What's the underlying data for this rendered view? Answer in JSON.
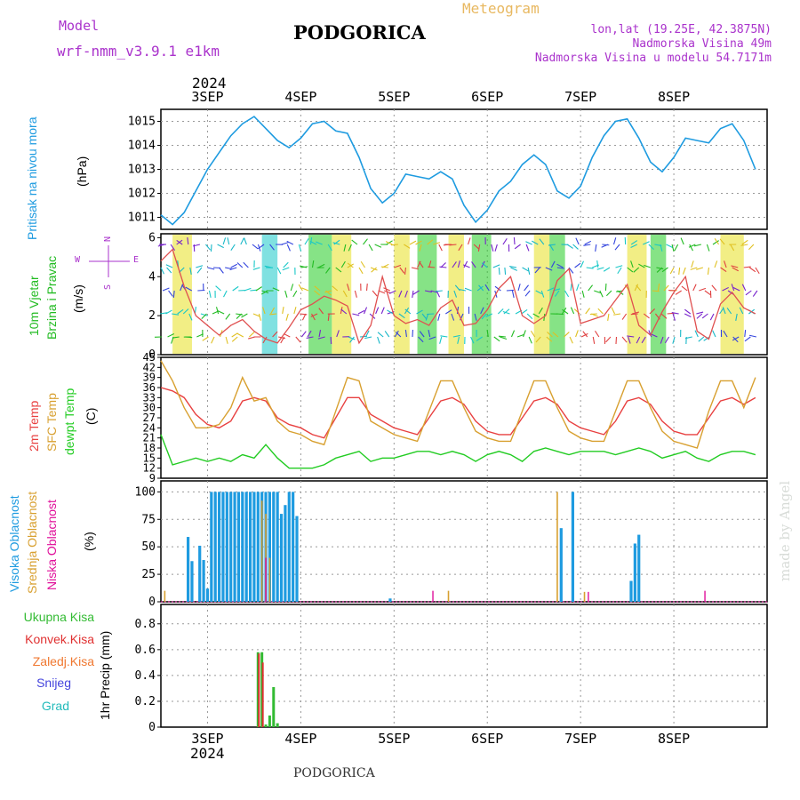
{
  "header": {
    "model_label": "Model",
    "model_name": "wrf-nmm_v3.9.1  e1km",
    "title": "PODGORICA",
    "meteogram_label": "Meteogram",
    "coords": "lon,lat (19.25E, 42.3875N)",
    "altitude": "Nadmorska Visina 49m",
    "model_altitude": "Nadmorska Visina u modelu 54.7171m",
    "footer_title": "PODGORICA",
    "credit": "made by Angel",
    "year_top": "2024",
    "year_bottom": "2024"
  },
  "colors": {
    "pressure": "#1e9be0",
    "wind_label": "#22bb22",
    "temp2m": "#e84040",
    "sfc": "#d8a030",
    "dewpt": "#22cc22",
    "high_cloud": "#1e9be0",
    "mid_cloud": "#d8a030",
    "low_cloud": "#e0109a",
    "rain_total": "#33bb33",
    "rain_conv": "#e03030",
    "rain_frozen": "#f07830",
    "snow": "#4444dd",
    "hail": "#22bbbb",
    "compass": "#aa33cc"
  },
  "days": [
    "3SEP",
    "4SEP",
    "5SEP",
    "6SEP",
    "7SEP",
    "8SEP"
  ],
  "panels": {
    "pressure": {
      "label": "Pritisak na nivou mora",
      "unit": "(hPa)",
      "ticks": [
        "1011",
        "1012",
        "1013",
        "1014",
        "1015"
      ]
    },
    "wind": {
      "label1": "10m Vjetar",
      "label2": "Brzina i Pravac",
      "unit": "(m/s)",
      "ticks": [
        "0",
        "2",
        "4",
        "6"
      ],
      "compass_w": "W",
      "compass_e": "E",
      "compass_n": "N",
      "compass_s": "S"
    },
    "temp": {
      "label1": "2m Temp",
      "label2": "SFC Temp",
      "label3": "dewpt Temp",
      "unit": "(C)",
      "ticks": [
        "9",
        "12",
        "15",
        "18",
        "21",
        "24",
        "27",
        "30",
        "33",
        "36",
        "39",
        "42",
        "45"
      ]
    },
    "cloud": {
      "label1": "Visoka Oblacnost",
      "label2": "Srednja Oblacnost",
      "label3": "Niska Oblacnost",
      "unit": "(%)",
      "ticks": [
        "0",
        "25",
        "50",
        "75",
        "100"
      ]
    },
    "precip": {
      "legend": [
        "Ukupna Kisa",
        "Konvek.Kisa",
        "Zaledj.Kisa",
        "Snijeg",
        "Grad"
      ],
      "unit": "1hr Precip (mm)",
      "ticks": [
        "0",
        "0.2",
        "0.4",
        "0.6",
        "0.8"
      ]
    }
  },
  "chart_data": [
    {
      "type": "line",
      "name": "pressure",
      "x_unit": "hours from 2 SEP 12UTC",
      "ylim": [
        1010.5,
        1015.5
      ],
      "x": [
        0,
        3,
        6,
        9,
        12,
        15,
        18,
        21,
        24,
        27,
        30,
        33,
        36,
        39,
        42,
        45,
        48,
        51,
        54,
        57,
        60,
        63,
        66,
        69,
        72,
        75,
        78,
        81,
        84,
        87,
        90,
        93,
        96,
        99,
        102,
        105,
        108,
        111,
        114,
        117,
        120,
        123,
        126,
        129,
        132,
        135,
        138,
        141,
        144,
        147,
        150,
        153
      ],
      "values": [
        1011.1,
        1010.7,
        1011.2,
        1012.1,
        1013.0,
        1013.7,
        1014.4,
        1014.9,
        1015.2,
        1014.7,
        1014.2,
        1013.9,
        1014.3,
        1014.9,
        1015.0,
        1014.6,
        1014.5,
        1013.5,
        1012.2,
        1011.6,
        1012.0,
        1012.8,
        1012.7,
        1012.6,
        1012.9,
        1012.6,
        1011.5,
        1010.8,
        1011.3,
        1012.1,
        1012.5,
        1013.2,
        1013.6,
        1013.2,
        1012.1,
        1011.8,
        1012.3,
        1013.5,
        1014.4,
        1015.0,
        1015.1,
        1014.3,
        1013.3,
        1012.9,
        1013.5,
        1014.3,
        1014.2,
        1014.1,
        1014.7,
        1014.9,
        1014.2,
        1013.0
      ]
    },
    {
      "type": "line",
      "name": "wind_speed",
      "x_unit": "hours from 2 SEP 12UTC",
      "ylim": [
        0,
        6.2
      ],
      "x": [
        0,
        3,
        6,
        9,
        12,
        15,
        18,
        21,
        24,
        27,
        30,
        33,
        36,
        39,
        42,
        45,
        48,
        51,
        54,
        57,
        60,
        63,
        66,
        69,
        72,
        75,
        78,
        81,
        84,
        87,
        90,
        93,
        96,
        99,
        102,
        105,
        108,
        111,
        114,
        117,
        120,
        123,
        126,
        129,
        132,
        135,
        138,
        141,
        144,
        147,
        150,
        153
      ],
      "values": [
        4.8,
        5.4,
        3.5,
        2.0,
        1.5,
        1.0,
        1.5,
        1.8,
        1.2,
        0.8,
        0.6,
        1.4,
        2.3,
        2.6,
        3.0,
        2.8,
        2.5,
        0.6,
        1.5,
        4.0,
        2.0,
        1.6,
        1.8,
        1.5,
        2.4,
        2.8,
        1.5,
        1.6,
        2.3,
        3.4,
        4.0,
        2.0,
        1.6,
        2.0,
        3.8,
        4.4,
        1.6,
        1.8,
        2.0,
        2.8,
        3.6,
        1.5,
        1.0,
        2.2,
        3.2,
        4.0,
        1.2,
        0.8,
        2.6,
        3.2,
        2.4,
        2.1
      ]
    },
    {
      "type": "line",
      "name": "temperatures",
      "x_unit": "hours from 2 SEP 12UTC",
      "ylim": [
        9,
        45
      ],
      "x": [
        0,
        3,
        6,
        9,
        12,
        15,
        18,
        21,
        24,
        27,
        30,
        33,
        36,
        39,
        42,
        45,
        48,
        51,
        54,
        57,
        60,
        63,
        66,
        69,
        72,
        75,
        78,
        81,
        84,
        87,
        90,
        93,
        96,
        99,
        102,
        105,
        108,
        111,
        114,
        117,
        120,
        123,
        126,
        129,
        132,
        135,
        138,
        141,
        144,
        147,
        150,
        153
      ],
      "series": [
        {
          "key": "temp2m",
          "values": [
            36,
            35,
            33,
            28,
            25,
            24,
            26,
            32,
            33,
            32,
            27,
            25,
            24,
            22,
            21,
            27,
            33,
            33,
            28,
            26,
            24,
            23,
            22,
            27,
            32,
            33,
            31,
            26,
            23,
            22,
            22,
            27,
            32,
            33,
            31,
            26,
            24,
            23,
            22,
            26,
            32,
            33,
            31,
            26,
            23,
            22,
            22,
            27,
            32,
            33,
            31,
            33
          ]
        },
        {
          "key": "sfc",
          "values": [
            44,
            38,
            30,
            24,
            24,
            25,
            30,
            39,
            32,
            33,
            26,
            23,
            22,
            20,
            19,
            29,
            39,
            38,
            26,
            24,
            22,
            21,
            20,
            29,
            38,
            38,
            30,
            23,
            21,
            20,
            20,
            29,
            38,
            38,
            30,
            23,
            21,
            20,
            20,
            29,
            38,
            38,
            30,
            23,
            20,
            19,
            18,
            29,
            38,
            38,
            30,
            39
          ]
        },
        {
          "key": "dewpt",
          "values": [
            22,
            13,
            14,
            15,
            14,
            15,
            14,
            16,
            15,
            19,
            15,
            12,
            12,
            12,
            13,
            15,
            16,
            17,
            14,
            15,
            15,
            16,
            17,
            17,
            16,
            17,
            16,
            14,
            16,
            17,
            16,
            14,
            17,
            18,
            17,
            16,
            17,
            17,
            17,
            16,
            17,
            18,
            17,
            15,
            16,
            17,
            15,
            14,
            16,
            17,
            17,
            16
          ]
        }
      ]
    },
    {
      "type": "bar",
      "name": "cloud_cover",
      "x_unit": "hours from 2 SEP 12UTC",
      "ylim": [
        0,
        100
      ],
      "series": [
        {
          "key": "high",
          "x": [
            7,
            8,
            10,
            11,
            12,
            13,
            14,
            15,
            16,
            17,
            18,
            19,
            20,
            21,
            22,
            23,
            24,
            25,
            26,
            27,
            28,
            29,
            30,
            31,
            32,
            33,
            34,
            35,
            36,
            37,
            59,
            103,
            106,
            121,
            122,
            123
          ],
          "values": [
            59,
            37,
            51,
            38,
            12,
            100,
            100,
            100,
            100,
            100,
            100,
            100,
            100,
            100,
            100,
            100,
            100,
            100,
            100,
            100,
            100,
            100,
            100,
            80,
            88,
            100,
            100,
            78,
            0,
            0,
            3,
            67,
            100,
            19,
            53,
            61
          ]
        },
        {
          "key": "mid",
          "x": [
            1,
            26,
            27,
            28,
            74,
            102,
            109
          ],
          "values": [
            10,
            92,
            80,
            40,
            10,
            100,
            9
          ]
        },
        {
          "key": "low",
          "x": [
            27,
            70,
            110,
            140
          ],
          "values": [
            40,
            10,
            9,
            10
          ]
        }
      ]
    },
    {
      "type": "bar",
      "name": "precipitation",
      "x_unit": "hours from 2 SEP 12UTC",
      "ylim": [
        0,
        0.95
      ],
      "series": [
        {
          "key": "total",
          "x": [
            25,
            26,
            27,
            28,
            29,
            30
          ],
          "values": [
            0.58,
            0.58,
            0.02,
            0.09,
            0.31,
            0.03
          ]
        },
        {
          "key": "conv",
          "x": [
            25,
            26
          ],
          "values": [
            0.57,
            0.5
          ]
        }
      ]
    }
  ]
}
